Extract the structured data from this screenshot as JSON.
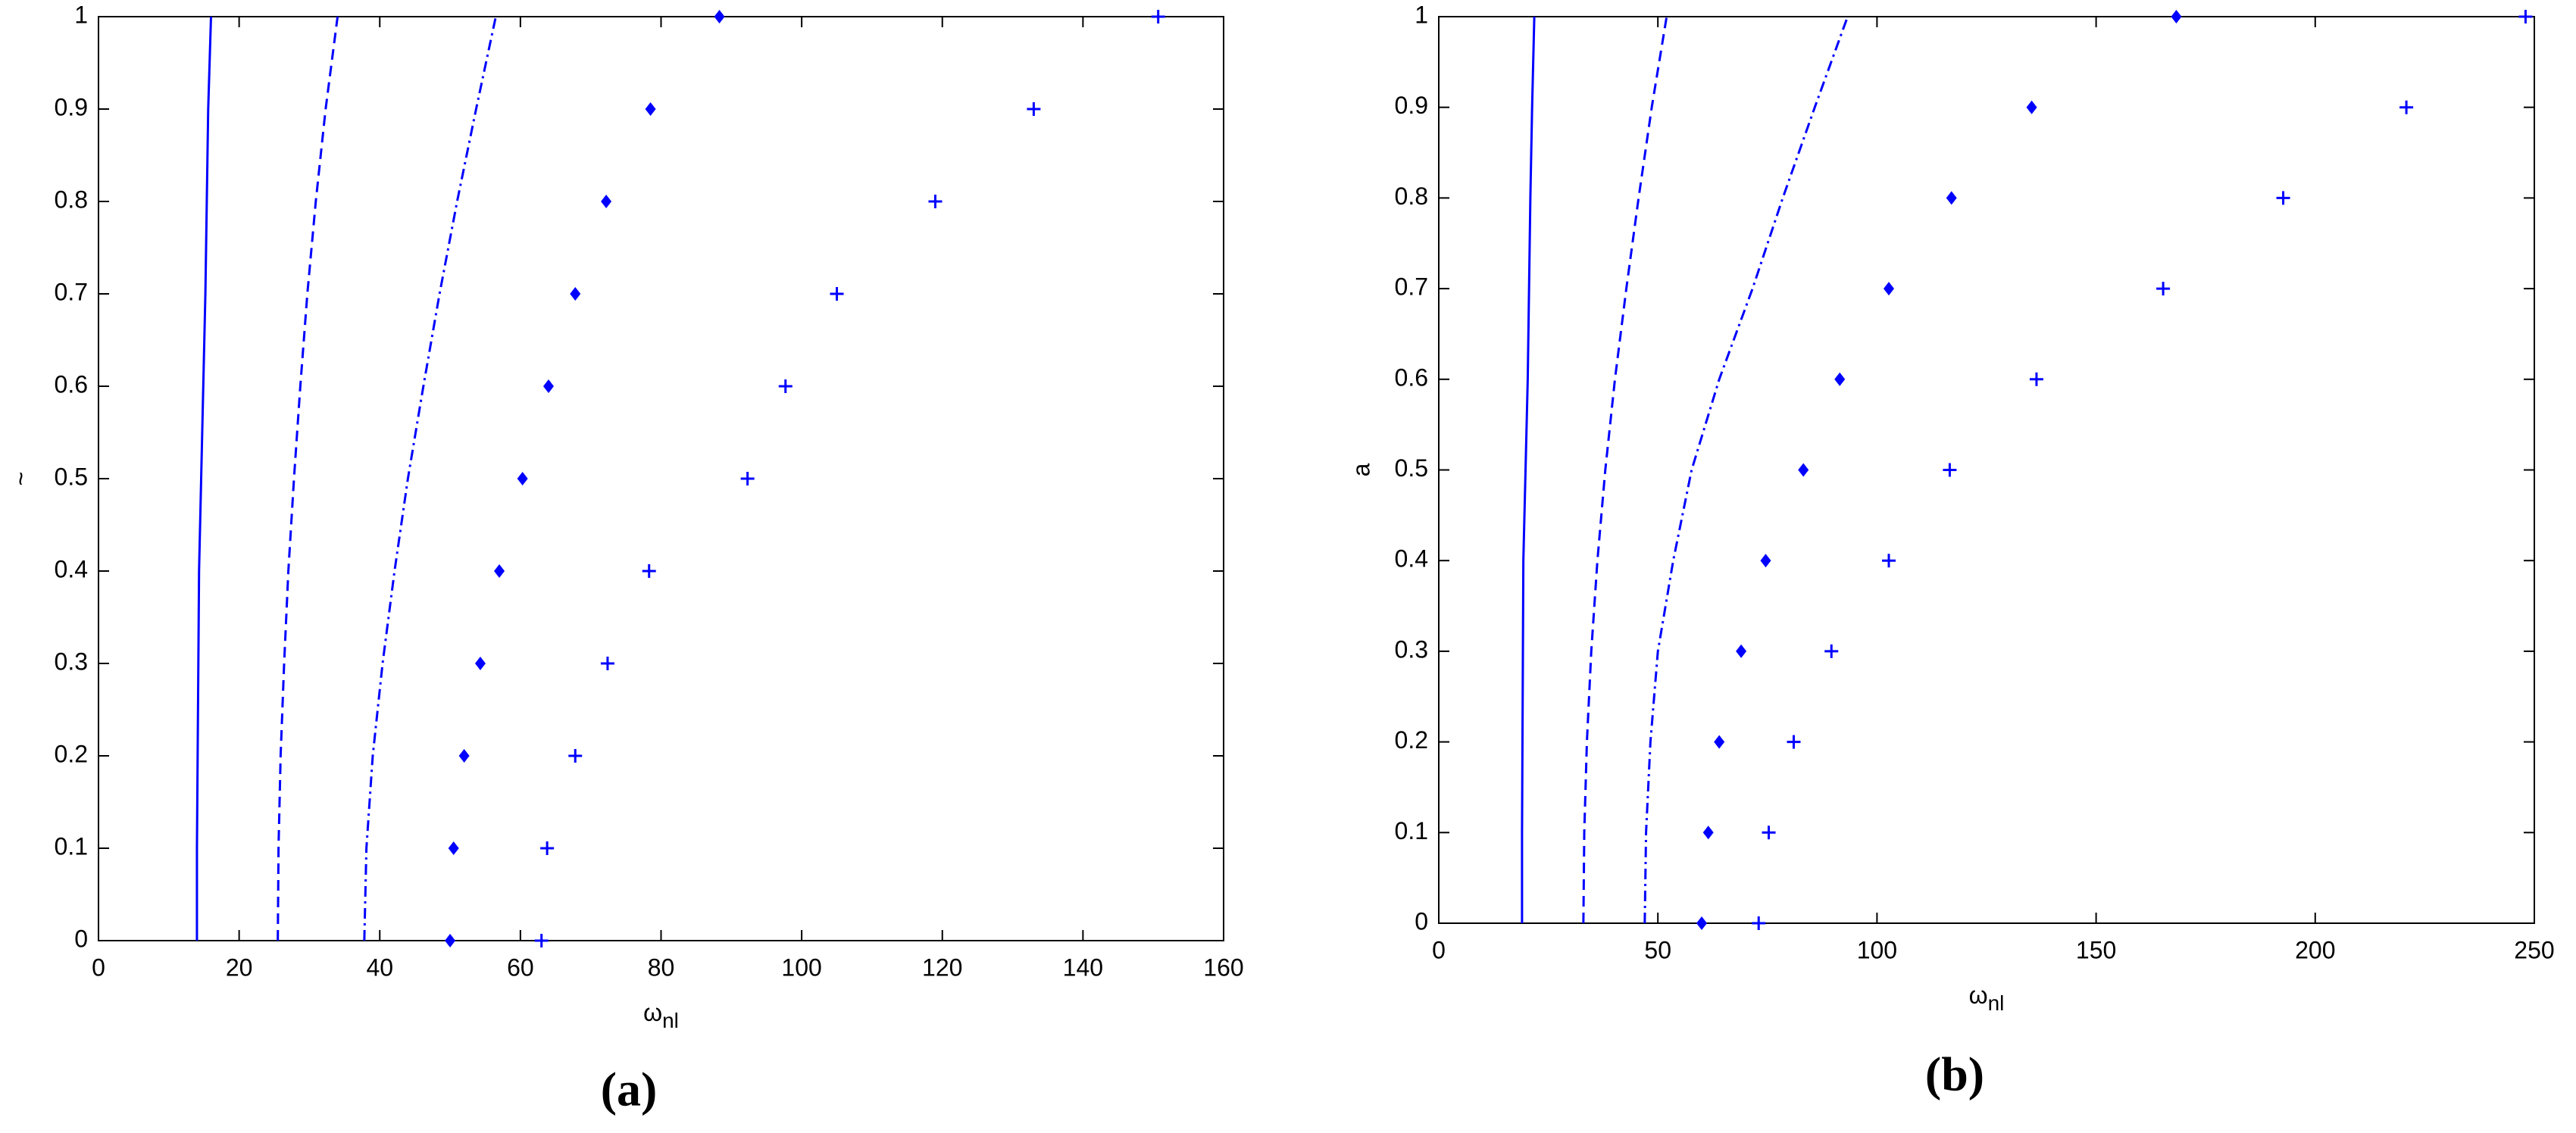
{
  "chart_data": [
    {
      "type": "line",
      "panel_label": "(a)",
      "xlabel": "ω",
      "xlabel_sub": "nl",
      "ylabel": "~",
      "xlim": [
        0,
        160
      ],
      "xticks": [
        0,
        20,
        40,
        60,
        80,
        100,
        120,
        140,
        160
      ],
      "ylim": [
        0,
        1
      ],
      "yticks": [
        0,
        0.1,
        0.2,
        0.3,
        0.4,
        0.5,
        0.6,
        0.7,
        0.8,
        0.9,
        1
      ],
      "y": [
        0,
        0.1,
        0.2,
        0.3,
        0.4,
        0.5,
        0.6,
        0.7,
        0.8,
        0.9,
        1
      ],
      "series": [
        {
          "color": "#0000ff",
          "style": "solid",
          "x": [
            14,
            14,
            14.1,
            14.2,
            14.3,
            14.6,
            14.9,
            15.2,
            15.4,
            15.6,
            16
          ]
        },
        {
          "color": "#0000ff",
          "style": "dashed",
          "x": [
            25.5,
            25.6,
            25.9,
            26.4,
            27,
            27.8,
            28.7,
            29.7,
            30.9,
            32.3,
            34
          ]
        },
        {
          "color": "#0000ff",
          "style": "dashdot",
          "x": [
            37.8,
            38.1,
            39,
            40.4,
            42.1,
            44,
            46.2,
            48.5,
            51,
            53.7,
            56.5
          ]
        },
        {
          "color": "#0000ff",
          "style": "diamond",
          "x": [
            50,
            50.5,
            52,
            54.3,
            57,
            60.3,
            64,
            67.8,
            72.2,
            78.5,
            88.3
          ]
        },
        {
          "color": "#0000ff",
          "style": "plus",
          "x": [
            63,
            63.8,
            67.8,
            72.4,
            78.3,
            92.3,
            97.7,
            105,
            119,
            133,
            150.7
          ]
        }
      ]
    },
    {
      "type": "line",
      "panel_label": "(b)",
      "xlabel": "ω",
      "xlabel_sub": "nl",
      "ylabel": "a",
      "xlim": [
        0,
        250
      ],
      "xticks": [
        0,
        50,
        100,
        150,
        200,
        250
      ],
      "ylim": [
        0,
        1
      ],
      "yticks": [
        0,
        0.1,
        0.2,
        0.3,
        0.4,
        0.5,
        0.6,
        0.7,
        0.8,
        0.9,
        1
      ],
      "y": [
        0,
        0.1,
        0.2,
        0.3,
        0.4,
        0.5,
        0.6,
        0.7,
        0.8,
        0.9,
        1
      ],
      "series": [
        {
          "color": "#0000ff",
          "style": "solid",
          "x": [
            19,
            19,
            19.1,
            19.2,
            19.3,
            19.8,
            20.3,
            20.6,
            20.9,
            21.3,
            21.8
          ]
        },
        {
          "color": "#0000ff",
          "style": "dashed",
          "x": [
            33,
            33.2,
            33.8,
            34.8,
            36.2,
            38,
            40.2,
            42.8,
            45.6,
            48.6,
            52
          ]
        },
        {
          "color": "#0000ff",
          "style": "dashdot",
          "x": [
            47,
            47.3,
            48.3,
            50,
            53.5,
            57.7,
            64,
            71.6,
            78.5,
            85.8,
            93.3
          ]
        },
        {
          "color": "#0000ff",
          "style": "diamond",
          "x": [
            60,
            61.5,
            64,
            69,
            74.6,
            83.2,
            91.5,
            102.7,
            117,
            135.3,
            168.3
          ]
        },
        {
          "color": "#0000ff",
          "style": "plus",
          "x": [
            73,
            75.3,
            81,
            89.6,
            102.7,
            116.6,
            136.4,
            165.3,
            192.7,
            220.8,
            248
          ]
        }
      ]
    }
  ]
}
